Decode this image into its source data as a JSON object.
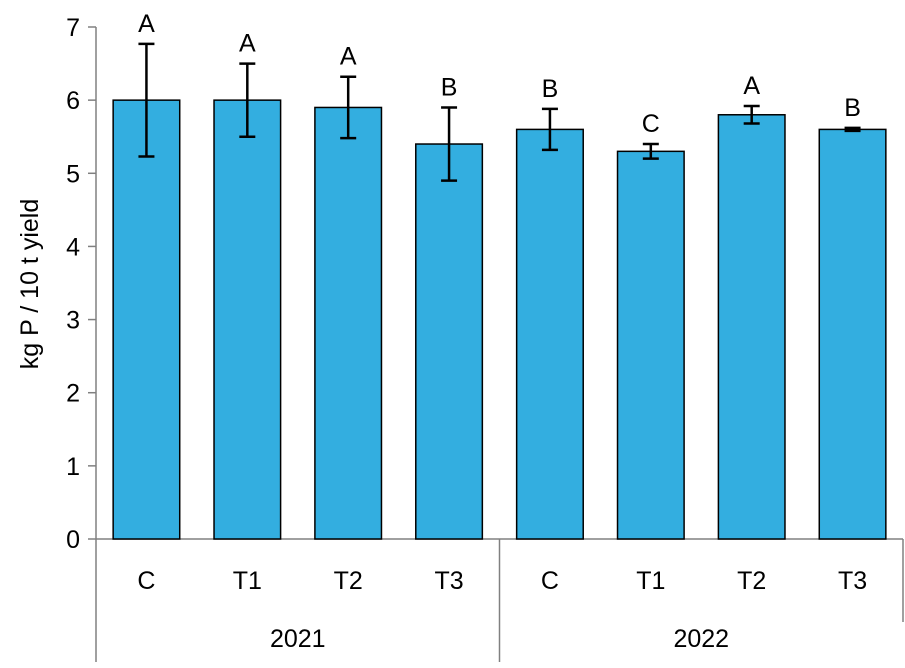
{
  "chart_data": {
    "type": "bar",
    "title": "",
    "ylabel": "kg P / 10 t yield",
    "xlabel": "",
    "ylim": [
      0,
      7
    ],
    "yticks": [
      0,
      1,
      2,
      3,
      4,
      5,
      6,
      7
    ],
    "grid": false,
    "bar_color": "#33AEE0",
    "groups": [
      {
        "label": "2021",
        "categories": [
          "C",
          "T1",
          "T2",
          "T3"
        ],
        "values": [
          6.0,
          6.0,
          5.9,
          5.4
        ],
        "errors": [
          0.77,
          0.5,
          0.42,
          0.5
        ],
        "letters": [
          "A",
          "A",
          "A",
          "B"
        ]
      },
      {
        "label": "2022",
        "categories": [
          "C",
          "T1",
          "T2",
          "T3"
        ],
        "values": [
          5.6,
          5.3,
          5.8,
          5.6
        ],
        "errors": [
          0.28,
          0.1,
          0.12,
          0.02
        ],
        "letters": [
          "B",
          "C",
          "A",
          "B"
        ]
      }
    ]
  }
}
